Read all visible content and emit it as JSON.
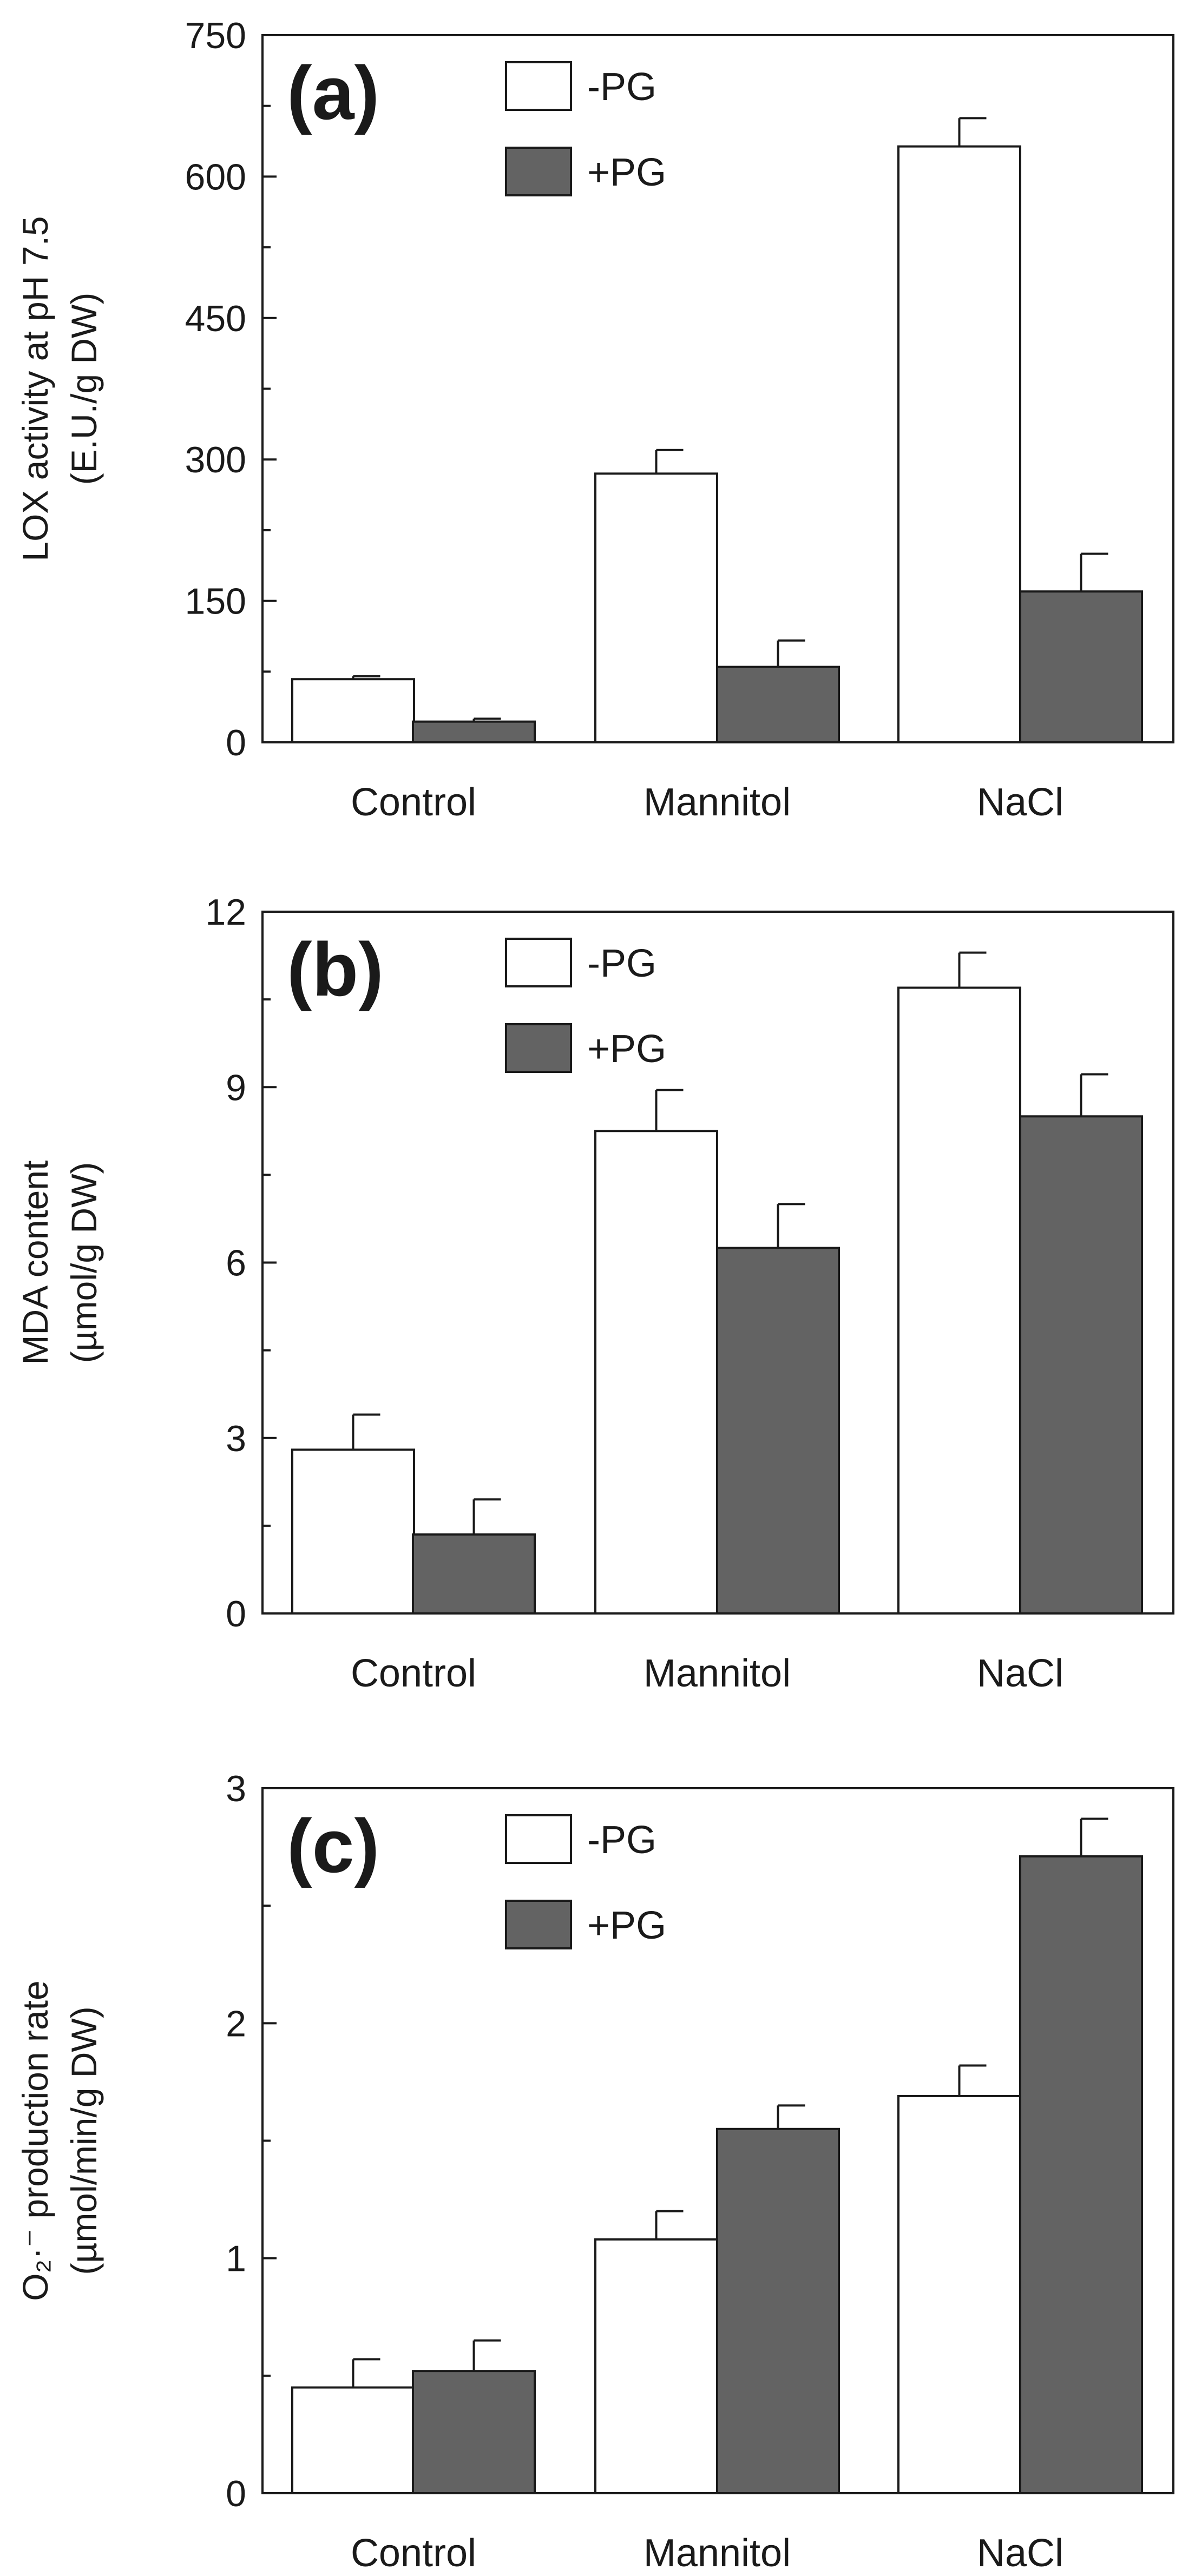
{
  "colors": {
    "neg_pg_fill": "#ffffff",
    "pos_pg_fill": "#636363",
    "stroke": "#1a1a1a"
  },
  "chart_data": [
    {
      "type": "bar",
      "panel_label": "(a)",
      "categories": [
        "Control",
        "Mannitol",
        "NaCl"
      ],
      "series": [
        {
          "name": "-PG",
          "values": [
            67,
            285,
            632
          ],
          "errors": [
            3,
            25,
            30
          ]
        },
        {
          "name": "+PG",
          "values": [
            22,
            80,
            160
          ],
          "errors": [
            3,
            28,
            40
          ]
        }
      ],
      "ylabel_line1": "LOX activity at pH 7.5",
      "ylabel_line2": "(E.U./g DW)",
      "ylim": [
        0,
        750
      ],
      "yticks": [
        0,
        150,
        300,
        450,
        600,
        750
      ],
      "legend_position": "top-center",
      "grid": false
    },
    {
      "type": "bar",
      "panel_label": "(b)",
      "categories": [
        "Control",
        "Mannitol",
        "NaCl"
      ],
      "series": [
        {
          "name": "-PG",
          "values": [
            2.8,
            8.25,
            10.7
          ],
          "errors": [
            0.6,
            0.7,
            0.6
          ]
        },
        {
          "name": "+PG",
          "values": [
            1.35,
            6.25,
            8.5
          ],
          "errors": [
            0.6,
            0.75,
            0.72
          ]
        }
      ],
      "ylabel_line1": "MDA content",
      "ylabel_line2": "(µmol/g DW)",
      "ylim": [
        0,
        12
      ],
      "yticks": [
        0,
        3,
        6,
        9,
        12
      ],
      "legend_position": "top-center",
      "grid": false
    },
    {
      "type": "bar",
      "panel_label": "(c)",
      "categories": [
        "Control",
        "Mannitol",
        "NaCl"
      ],
      "series": [
        {
          "name": "-PG",
          "values": [
            0.45,
            1.08,
            1.69
          ],
          "errors": [
            0.12,
            0.12,
            0.13
          ]
        },
        {
          "name": "+PG",
          "values": [
            0.52,
            1.55,
            2.71
          ],
          "errors": [
            0.13,
            0.1,
            0.16
          ]
        }
      ],
      "ylabel_line1": "O₂·⁻ production rate",
      "ylabel_line2": "(µmol/min/g DW)",
      "ylim": [
        0,
        3
      ],
      "yticks": [
        0,
        1,
        2,
        3
      ],
      "legend_position": "top-center",
      "grid": false
    }
  ]
}
